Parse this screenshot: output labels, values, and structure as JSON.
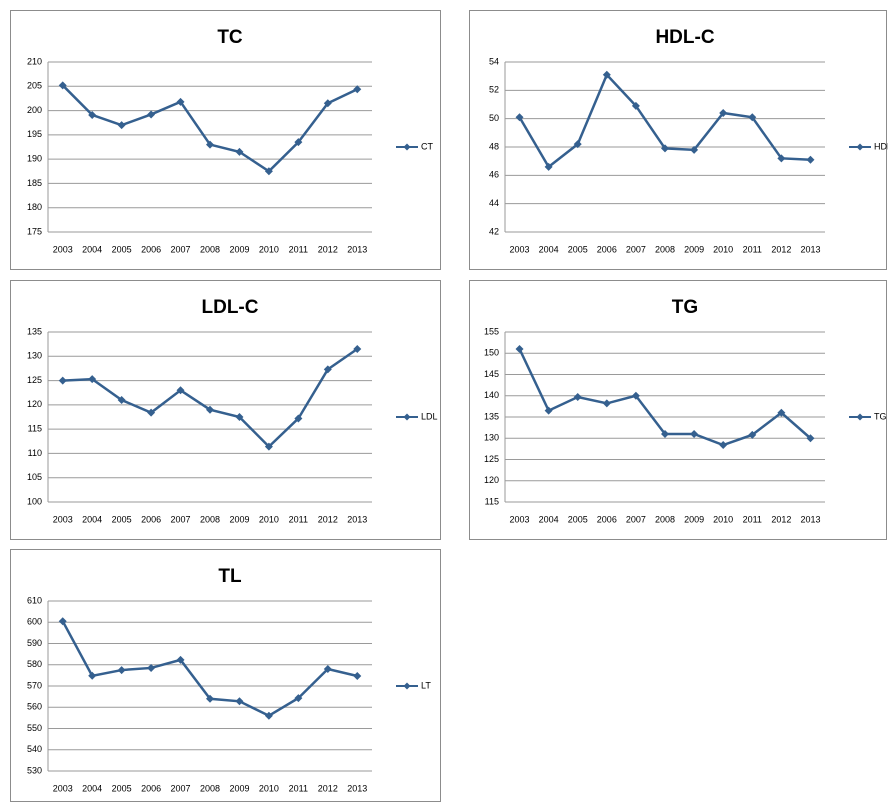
{
  "chart_data": [
    {
      "type": "line",
      "title": "TC",
      "categories": [
        "2003",
        "2004",
        "2005",
        "2006",
        "2007",
        "2008",
        "2009",
        "2010",
        "2011",
        "2012",
        "2013"
      ],
      "series": [
        {
          "name": "CT",
          "color": "#35608f",
          "values": [
            205.2,
            199.1,
            197,
            199.2,
            201.8,
            193,
            191.5,
            187.5,
            193.5,
            201.5,
            204.4
          ]
        }
      ],
      "ylim": [
        175,
        210
      ],
      "yticks": [
        175,
        180,
        185,
        190,
        195,
        200,
        205,
        210
      ],
      "grid": true,
      "legend": "right"
    },
    {
      "type": "line",
      "title": "HDL-C",
      "categories": [
        "2003",
        "2004",
        "2005",
        "2006",
        "2007",
        "2008",
        "2009",
        "2010",
        "2011",
        "2012",
        "2013"
      ],
      "series": [
        {
          "name": "HDL",
          "color": "#35608f",
          "values": [
            50.1,
            46.6,
            48.2,
            53.1,
            50.9,
            47.9,
            47.8,
            50.4,
            50.1,
            47.2,
            47.1
          ]
        }
      ],
      "ylim": [
        42,
        54
      ],
      "yticks": [
        42,
        44,
        46,
        48,
        50,
        52,
        54
      ],
      "grid": true,
      "legend": "right"
    },
    {
      "type": "line",
      "title": "LDL-C",
      "categories": [
        "2003",
        "2004",
        "2005",
        "2006",
        "2007",
        "2008",
        "2009",
        "2010",
        "2011",
        "2012",
        "2013"
      ],
      "series": [
        {
          "name": "LDL",
          "color": "#35608f",
          "values": [
            125,
            125.3,
            121,
            118.4,
            123,
            119,
            117.5,
            111.4,
            117.2,
            127.3,
            131.5
          ]
        }
      ],
      "ylim": [
        100,
        135
      ],
      "yticks": [
        100,
        105,
        110,
        115,
        120,
        125,
        130,
        135
      ],
      "grid": true,
      "legend": "right"
    },
    {
      "type": "line",
      "title": "TG",
      "categories": [
        "2003",
        "2004",
        "2005",
        "2006",
        "2007",
        "2008",
        "2009",
        "2010",
        "2011",
        "2012",
        "2013"
      ],
      "series": [
        {
          "name": "TG",
          "color": "#35608f",
          "values": [
            151,
            136.5,
            139.7,
            138.2,
            140,
            131,
            131,
            128.4,
            130.8,
            136,
            130
          ]
        }
      ],
      "ylim": [
        115,
        155
      ],
      "yticks": [
        115,
        120,
        125,
        130,
        135,
        140,
        145,
        150,
        155
      ],
      "grid": true,
      "legend": "right"
    },
    {
      "type": "line",
      "title": "TL",
      "categories": [
        "2003",
        "2004",
        "2005",
        "2006",
        "2007",
        "2008",
        "2009",
        "2010",
        "2011",
        "2012",
        "2013"
      ],
      "series": [
        {
          "name": "LT",
          "color": "#35608f",
          "values": [
            600.5,
            574.8,
            577.5,
            578.5,
            582.3,
            564,
            562.8,
            556,
            564.3,
            578,
            574.7
          ]
        }
      ],
      "ylim": [
        530,
        610
      ],
      "yticks": [
        530,
        540,
        550,
        560,
        570,
        580,
        590,
        600,
        610
      ],
      "grid": true,
      "legend": "right"
    }
  ]
}
